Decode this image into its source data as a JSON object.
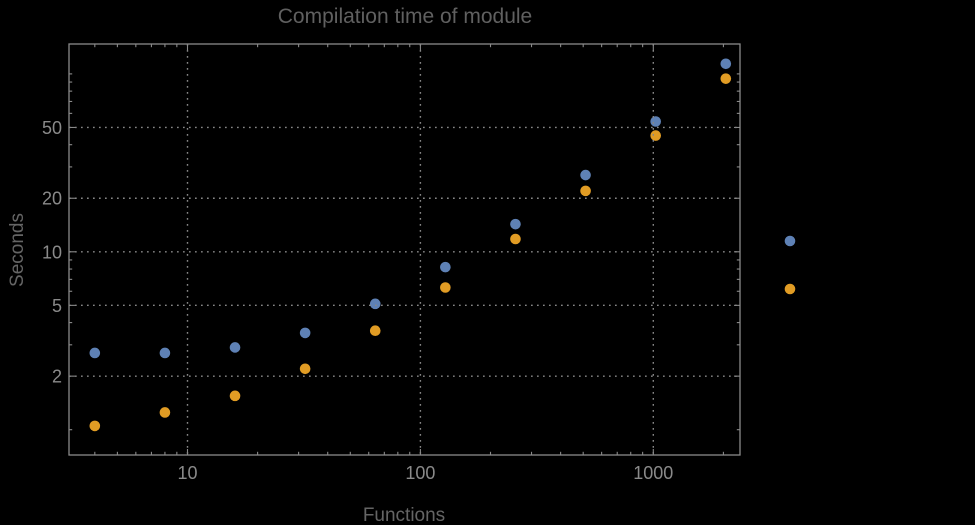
{
  "chart_data": {
    "type": "scatter",
    "title": "Compilation time of module",
    "xlabel": "Functions",
    "ylabel": "Seconds",
    "x_scale": "log",
    "y_scale": "log",
    "xlim": [
      3.1,
      2360
    ],
    "ylim": [
      0.72,
      147
    ],
    "grid": "dotted lines at labeled major ticks",
    "x_axis": {
      "major_ticks": [
        {
          "value": 10,
          "label": "10"
        },
        {
          "value": 100,
          "label": "100"
        },
        {
          "value": 1000,
          "label": "1000"
        }
      ],
      "minor_ticks": [
        4,
        5,
        6,
        7,
        8,
        9,
        20,
        30,
        40,
        50,
        60,
        70,
        80,
        90,
        200,
        300,
        400,
        500,
        600,
        700,
        800,
        900,
        2000
      ]
    },
    "y_axis": {
      "major_ticks": [
        {
          "value": 2,
          "label": "2"
        },
        {
          "value": 5,
          "label": "5"
        },
        {
          "value": 10,
          "label": "10"
        },
        {
          "value": 20,
          "label": "20"
        },
        {
          "value": 50,
          "label": "50"
        }
      ],
      "minor_ticks": [
        1,
        3,
        4,
        6,
        7,
        8,
        9,
        30,
        40,
        60,
        70,
        80,
        90,
        100
      ]
    },
    "series": [
      {
        "name": "blue-series",
        "color": "#5e81b5",
        "points": [
          [
            4,
            2.7
          ],
          [
            8,
            2.7
          ],
          [
            16,
            2.9
          ],
          [
            32,
            3.5
          ],
          [
            64,
            5.1
          ],
          [
            128,
            8.2
          ],
          [
            256,
            14.3
          ],
          [
            512,
            27
          ],
          [
            1024,
            54
          ],
          [
            2048,
            114
          ]
        ]
      },
      {
        "name": "orange-series",
        "color": "#e19c24",
        "points": [
          [
            4,
            1.05
          ],
          [
            8,
            1.25
          ],
          [
            16,
            1.55
          ],
          [
            32,
            2.2
          ],
          [
            64,
            3.6
          ],
          [
            128,
            6.3
          ],
          [
            256,
            11.8
          ],
          [
            512,
            22
          ],
          [
            1024,
            45
          ],
          [
            2048,
            94
          ]
        ]
      }
    ],
    "legend": {
      "position": "right-outside",
      "labels_visible": false,
      "markers": [
        {
          "color": "#5e81b5"
        },
        {
          "color": "#e19c24"
        }
      ]
    }
  },
  "colors": {
    "background": "#000000",
    "frame": "#8a8a8a",
    "gridline": "#878787",
    "tick_label": "#8a8a8a",
    "title_text": "#606060",
    "axis_label_text": "#656565",
    "series_blue": "#5e81b5",
    "series_orange": "#e19c24"
  }
}
